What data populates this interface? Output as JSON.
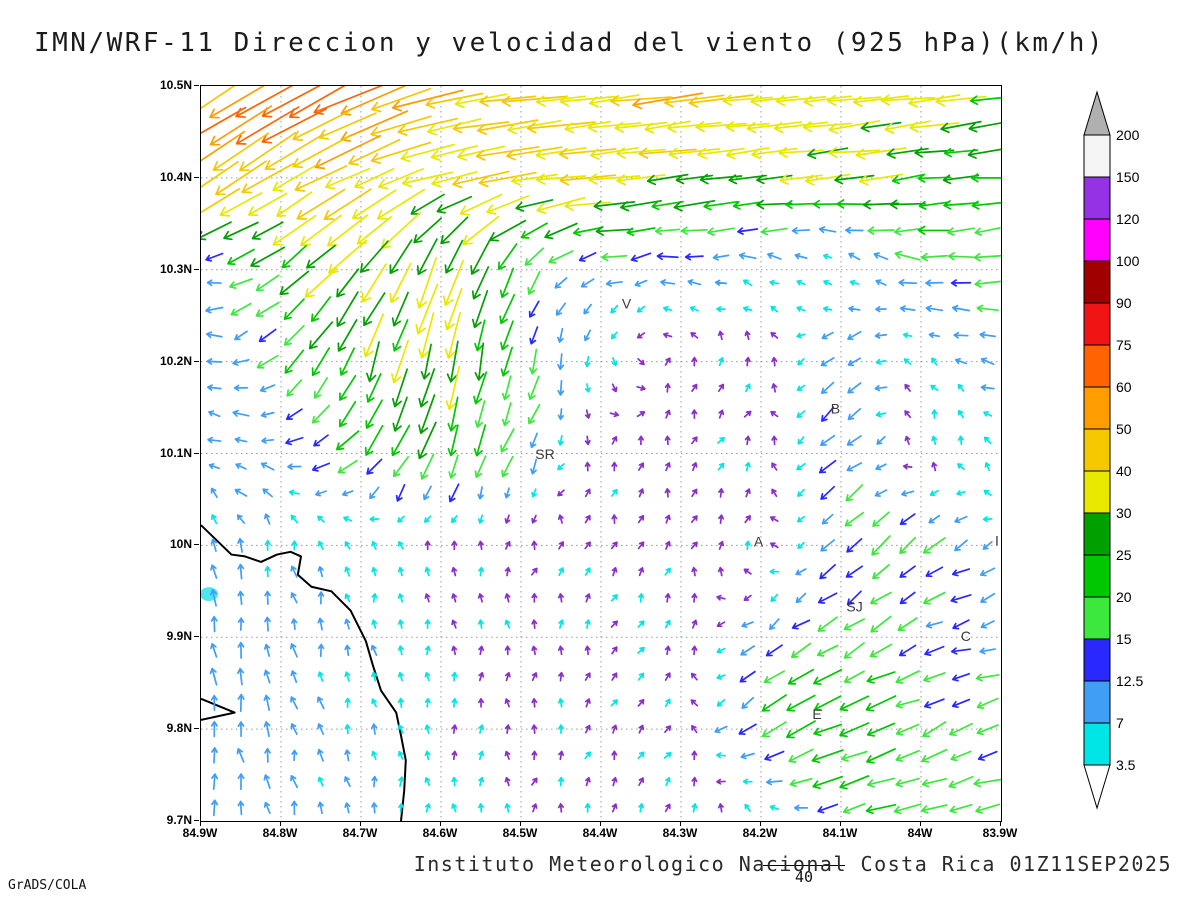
{
  "title": "IMN/WRF-11 Direccion y velocidad del viento (925 hPa)(km/h)",
  "footer": {
    "credit": "GrADS/COLA",
    "institute": "Instituto Meteorologico Nacional Costa Rica 01Z11SEP2025"
  },
  "ref_vector": {
    "label": "40",
    "speed": 40
  },
  "axes": {
    "lon_min": -84.9,
    "lon_max": -83.9,
    "lat_min": 9.7,
    "lat_max": 10.5,
    "x_ticks": [
      "84.9W",
      "84.8W",
      "84.7W",
      "84.6W",
      "84.5W",
      "84.4W",
      "84.3W",
      "84.2W",
      "84.1W",
      "84W",
      "83.9W"
    ],
    "y_ticks": [
      "10.5N",
      "10.4N",
      "10.3N",
      "10.2N",
      "10.1N",
      "10N",
      "9.9N",
      "9.8N",
      "9.7N"
    ],
    "grid": "dotted"
  },
  "colorbar": {
    "levels": [
      3.5,
      7,
      12.5,
      15,
      20,
      25,
      30,
      40,
      50,
      60,
      75,
      90,
      100,
      120,
      150,
      200
    ],
    "colors": [
      "#00e6e6",
      "#419ef5",
      "#2828ff",
      "#3ce83c",
      "#00c800",
      "#00a000",
      "#e8e800",
      "#f5c800",
      "#ff9c00",
      "#ff6400",
      "#f01414",
      "#a00000",
      "#ff00ff",
      "#9632e6",
      "#f5f5f5"
    ],
    "under_color": "#ffffff",
    "over_color": "#b0b0b0",
    "arrow_calm_color": "#8b2fc9"
  },
  "stations": [
    {
      "label": "V",
      "lon": -84.368,
      "lat": 10.262
    },
    {
      "label": "SR",
      "lon": -84.47,
      "lat": 10.098
    },
    {
      "label": "B",
      "lon": -84.107,
      "lat": 10.148
    },
    {
      "label": "A",
      "lon": -84.203,
      "lat": 10.003
    },
    {
      "label": "SJ",
      "lon": -84.083,
      "lat": 9.932
    },
    {
      "label": "C",
      "lon": -83.944,
      "lat": 9.9
    },
    {
      "label": "E",
      "lon": -84.13,
      "lat": 9.815
    },
    {
      "label": "I",
      "lon": -83.905,
      "lat": 10.004
    }
  ],
  "chart_data": {
    "type": "vector_field",
    "units": "km/h",
    "level": "925 hPa",
    "grid": {
      "lons": [
        -84.9,
        -84.8,
        -84.7,
        -84.6,
        -84.5,
        -84.4,
        -84.3,
        -84.2,
        -84.1,
        -84.0,
        -83.9
      ],
      "lats": [
        10.5,
        10.4,
        10.3,
        10.2,
        10.1,
        10.0,
        9.9,
        9.8,
        9.7
      ]
    },
    "u": [
      [
        -48,
        -62,
        -50,
        -46,
        -44,
        -43,
        -45,
        -44,
        -41,
        -35,
        -28
      ],
      [
        -40,
        -38,
        -34,
        -38,
        -38,
        -36,
        -33,
        -30,
        -28,
        -26,
        -23
      ],
      [
        -10,
        -18,
        -22,
        -11,
        -8,
        -12,
        -10,
        -7,
        -2,
        -16,
        -17
      ],
      [
        -8,
        -13,
        -9,
        -7,
        -4,
        2,
        1,
        2,
        -11,
        -2,
        -12
      ],
      [
        -8,
        -10,
        -14,
        -8,
        -7,
        1,
        1,
        2,
        -13,
        1,
        -2
      ],
      [
        -2,
        -2,
        -1,
        0,
        1,
        1,
        1,
        1,
        -11,
        -14,
        -7
      ],
      [
        -2,
        -2,
        -1,
        0,
        0,
        1,
        2,
        -9,
        -13,
        -14,
        -12
      ],
      [
        -2,
        -2,
        -1,
        -1,
        0,
        1,
        2,
        -16,
        -26,
        -15,
        -14
      ],
      [
        -1,
        -2,
        -1,
        0,
        1,
        1,
        2,
        -1,
        -16,
        -20,
        -19
      ]
    ],
    "v": [
      [
        -30,
        -38,
        -20,
        -9,
        -6,
        -5,
        -6,
        -5,
        -5,
        -4,
        -3
      ],
      [
        -28,
        -22,
        -16,
        -9,
        -5,
        -4,
        -4,
        -3,
        -3,
        -3,
        -2
      ],
      [
        3,
        -14,
        -26,
        -31,
        -16,
        -3,
        -1,
        2,
        4,
        2,
        -2
      ],
      [
        3,
        -12,
        -25,
        -32,
        -18,
        -6,
        3,
        3,
        -9,
        4,
        2
      ],
      [
        4,
        2,
        -15,
        -24,
        -14,
        3,
        3,
        3,
        -11,
        4,
        6
      ],
      [
        9,
        7,
        5,
        3,
        3,
        3,
        3,
        3,
        -9,
        -11,
        -3
      ],
      [
        11,
        9,
        7,
        4,
        3,
        3,
        3,
        -7,
        -9,
        -5,
        -3
      ],
      [
        11,
        9,
        7,
        4,
        3,
        3,
        3,
        -11,
        -9,
        -7,
        -5
      ],
      [
        9,
        9,
        7,
        4,
        3,
        3,
        4,
        6,
        -5,
        -5,
        -4
      ]
    ],
    "coastlines": [
      [
        [
          -84.9,
          10.022
        ],
        [
          -84.862,
          9.99
        ],
        [
          -84.845,
          9.988
        ],
        [
          -84.825,
          9.982
        ],
        [
          -84.805,
          9.99
        ],
        [
          -84.788,
          9.993
        ],
        [
          -84.775,
          9.988
        ],
        [
          -84.779,
          9.968
        ],
        [
          -84.762,
          9.955
        ],
        [
          -84.737,
          9.95
        ],
        [
          -84.713,
          9.929
        ],
        [
          -84.694,
          9.896
        ],
        [
          -84.685,
          9.869
        ],
        [
          -84.675,
          9.842
        ],
        [
          -84.656,
          9.818
        ],
        [
          -84.65,
          9.793
        ],
        [
          -84.644,
          9.766
        ],
        [
          -84.646,
          9.733
        ],
        [
          -84.65,
          9.7
        ]
      ],
      [
        [
          -84.9,
          9.833
        ],
        [
          -84.858,
          9.818
        ],
        [
          -84.9,
          9.81
        ]
      ]
    ],
    "shaded_patch": {
      "lon": -84.89,
      "lat": 9.947,
      "color": "#4de6f2"
    }
  }
}
